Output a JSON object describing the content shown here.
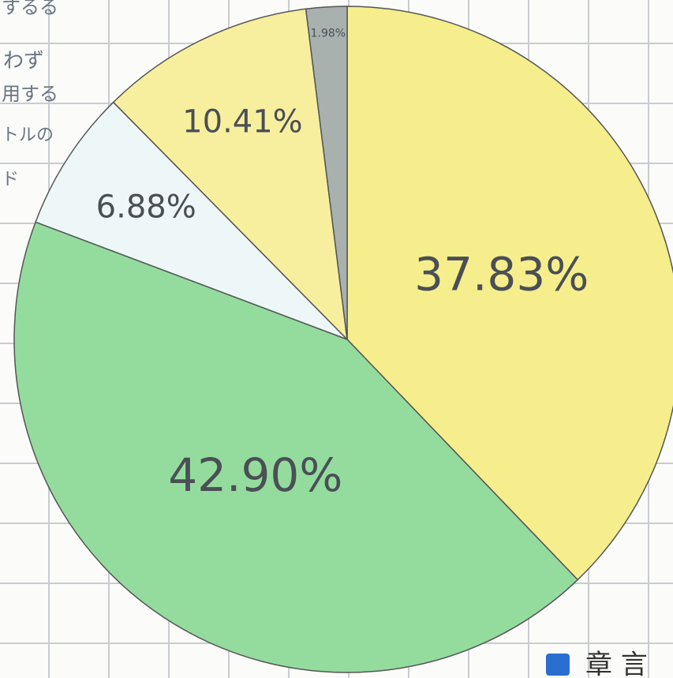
{
  "chart_data": {
    "type": "pie",
    "values": [
      37.83,
      42.9,
      6.88,
      10.41,
      1.98
    ],
    "value_labels": [
      "37.83%",
      "42.90%",
      "6.88%",
      "10.41%",
      "1.98%"
    ],
    "colors": [
      "#f6ee8c",
      "#94dc9e",
      "#eef7f7",
      "#f7ef9e",
      "#a9b1af"
    ],
    "side_texts": [
      "するる",
      "わず",
      "用する",
      "トルの",
      "ド"
    ],
    "corner_text": "章 言"
  }
}
